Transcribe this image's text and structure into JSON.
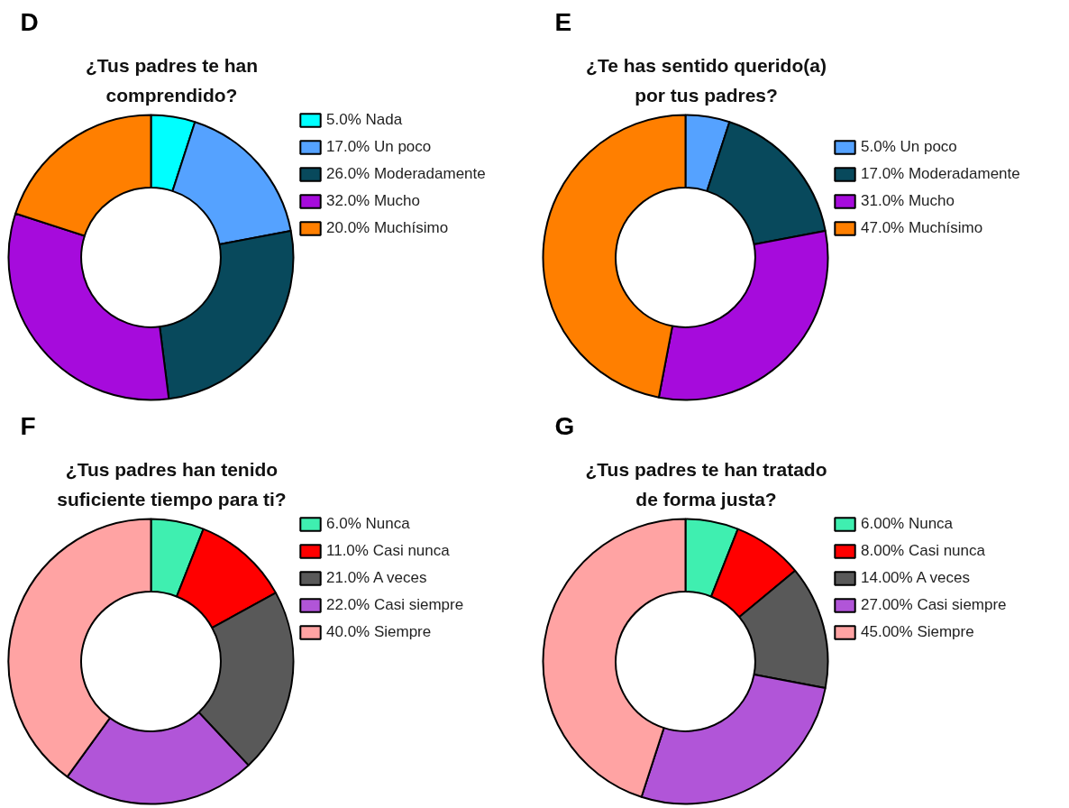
{
  "chart_data": [
    {
      "type": "donut",
      "title": "¿Tus padres te han comprendido?",
      "annotations": [
        "D"
      ],
      "legend": "right",
      "categories": [
        "Nada",
        "Un poco",
        "Moderadamente",
        "Mucho",
        "Muchísimo"
      ],
      "values": [
        5,
        17,
        26,
        32,
        20
      ],
      "value_labels": [
        "5.0%",
        "17.0%",
        "26.0%",
        "32.0%",
        "20.0%"
      ],
      "colors": [
        "#00ffff",
        "#55a2ff",
        "#08495c",
        "#a60bdc",
        "#ff7f00"
      ]
    },
    {
      "type": "donut",
      "title": "¿Te has sentido querido(a) por tus padres?",
      "annotations": [
        "E"
      ],
      "legend": "right",
      "categories": [
        "Un poco",
        "Moderadamente",
        "Mucho",
        "Muchísimo"
      ],
      "values": [
        5,
        17,
        31,
        47
      ],
      "value_labels": [
        "5.0%",
        "17.0%",
        "31.0%",
        "47.0%"
      ],
      "colors": [
        "#55a2ff",
        "#08495c",
        "#a60bdc",
        "#ff7f00"
      ]
    },
    {
      "type": "donut",
      "title": "¿Tus padres han tenido suficiente tiempo para ti?",
      "annotations": [
        "F"
      ],
      "legend": "right",
      "categories": [
        "Nunca",
        "Casi nunca",
        "A veces",
        "Casi siempre",
        "Siempre"
      ],
      "values": [
        6,
        11,
        21,
        22,
        40
      ],
      "value_labels": [
        "6.0%",
        "11.0%",
        "21.0%",
        "22.0%",
        "40.0%"
      ],
      "colors": [
        "#3fefb0",
        "#ff0000",
        "#595959",
        "#b155d8",
        "#ffa3a3"
      ]
    },
    {
      "type": "donut",
      "title": "¿Tus padres te han tratado de forma justa?",
      "annotations": [
        "G"
      ],
      "legend": "right",
      "categories": [
        "Nunca",
        "Casi nunca",
        "A veces",
        "Casi siempre",
        "Siempre"
      ],
      "values": [
        6,
        8,
        14,
        27,
        45
      ],
      "value_labels": [
        "6.00%",
        "8.00%",
        "14.00%",
        "27.00%",
        "45.00%"
      ],
      "colors": [
        "#3fefb0",
        "#ff0000",
        "#595959",
        "#b155d8",
        "#ffa3a3"
      ]
    }
  ]
}
